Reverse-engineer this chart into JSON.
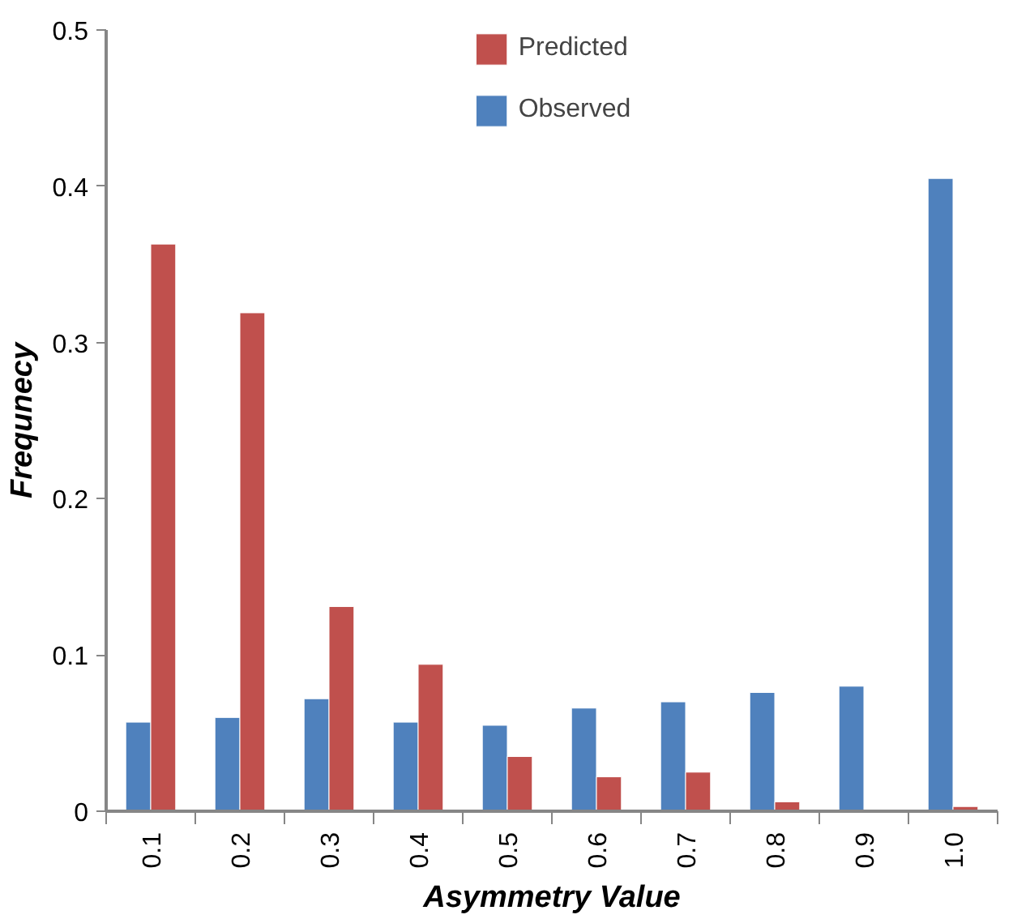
{
  "chart_data": {
    "type": "bar",
    "xlabel": "Asymmetry Value",
    "ylabel": "Frequnecy",
    "categories": [
      "0.1",
      "0.2",
      "0.3",
      "0.4",
      "0.5",
      "0.6",
      "0.7",
      "0.8",
      "0.9",
      "1.0"
    ],
    "series": [
      {
        "name": "Observed",
        "color": "#4f81bd",
        "values": [
          0.057,
          0.06,
          0.072,
          0.057,
          0.055,
          0.066,
          0.07,
          0.076,
          0.08,
          0.405
        ]
      },
      {
        "name": "Predicted",
        "color": "#c0504d",
        "values": [
          0.363,
          0.319,
          0.131,
          0.094,
          0.035,
          0.022,
          0.025,
          0.006,
          null,
          0.003
        ]
      }
    ],
    "ylim": [
      0,
      0.5
    ],
    "yticks": [
      0,
      0.1,
      0.2,
      0.3,
      0.4,
      0.5
    ],
    "grid": false,
    "legend": "top"
  }
}
